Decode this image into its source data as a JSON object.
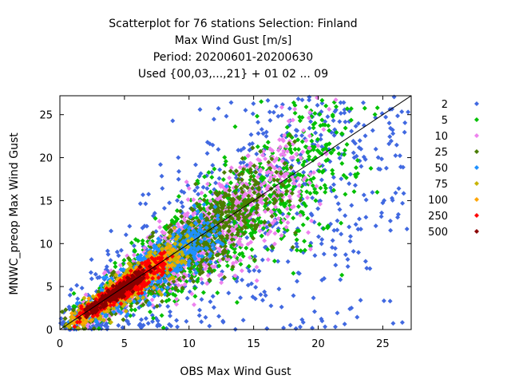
{
  "chart_data": {
    "type": "scatter",
    "title_lines": [
      "Scatterplot for   76 stations Selection: Finland",
      "Max Wind Gust [m/s]",
      "Period: 20200601-20200630",
      "Used {00,03,...,21} + 01 02 ... 09"
    ],
    "xlabel": "OBS Max Wind Gust",
    "ylabel": "MNWC_preop Max Wind Gust",
    "xlim": [
      0,
      27.2
    ],
    "ylim": [
      0,
      27.2
    ],
    "xticks": [
      0,
      5,
      10,
      15,
      20,
      25
    ],
    "yticks": [
      0,
      5,
      10,
      15,
      20,
      25
    ],
    "grid": false,
    "legend_position": "right",
    "diagonal_line": true,
    "density_classes": [
      {
        "name": "2",
        "color": "#4169e1",
        "spread": 1.0,
        "xmin": 0,
        "xmax": 27
      },
      {
        "name": "5",
        "color": "#00c000",
        "spread": 0.78,
        "xmin": 0,
        "xmax": 25
      },
      {
        "name": "10",
        "color": "#ee82ee",
        "spread": 0.62,
        "xmin": 0,
        "xmax": 22
      },
      {
        "name": "25",
        "color": "#4a7d00",
        "spread": 0.5,
        "xmin": 0,
        "xmax": 19
      },
      {
        "name": "50",
        "color": "#1e90ff",
        "spread": 0.38,
        "xmin": 0.3,
        "xmax": 13
      },
      {
        "name": "75",
        "color": "#c8b400",
        "spread": 0.28,
        "xmin": 0.5,
        "xmax": 10.5
      },
      {
        "name": "100",
        "color": "#ffa500",
        "spread": 0.2,
        "xmin": 0.7,
        "xmax": 9.5
      },
      {
        "name": "250",
        "color": "#ff0000",
        "spread": 0.15,
        "xmin": 1,
        "xmax": 9
      },
      {
        "name": "500",
        "color": "#8b0000",
        "spread": 0.07,
        "xmin": 1.5,
        "xmax": 7.5
      }
    ]
  }
}
